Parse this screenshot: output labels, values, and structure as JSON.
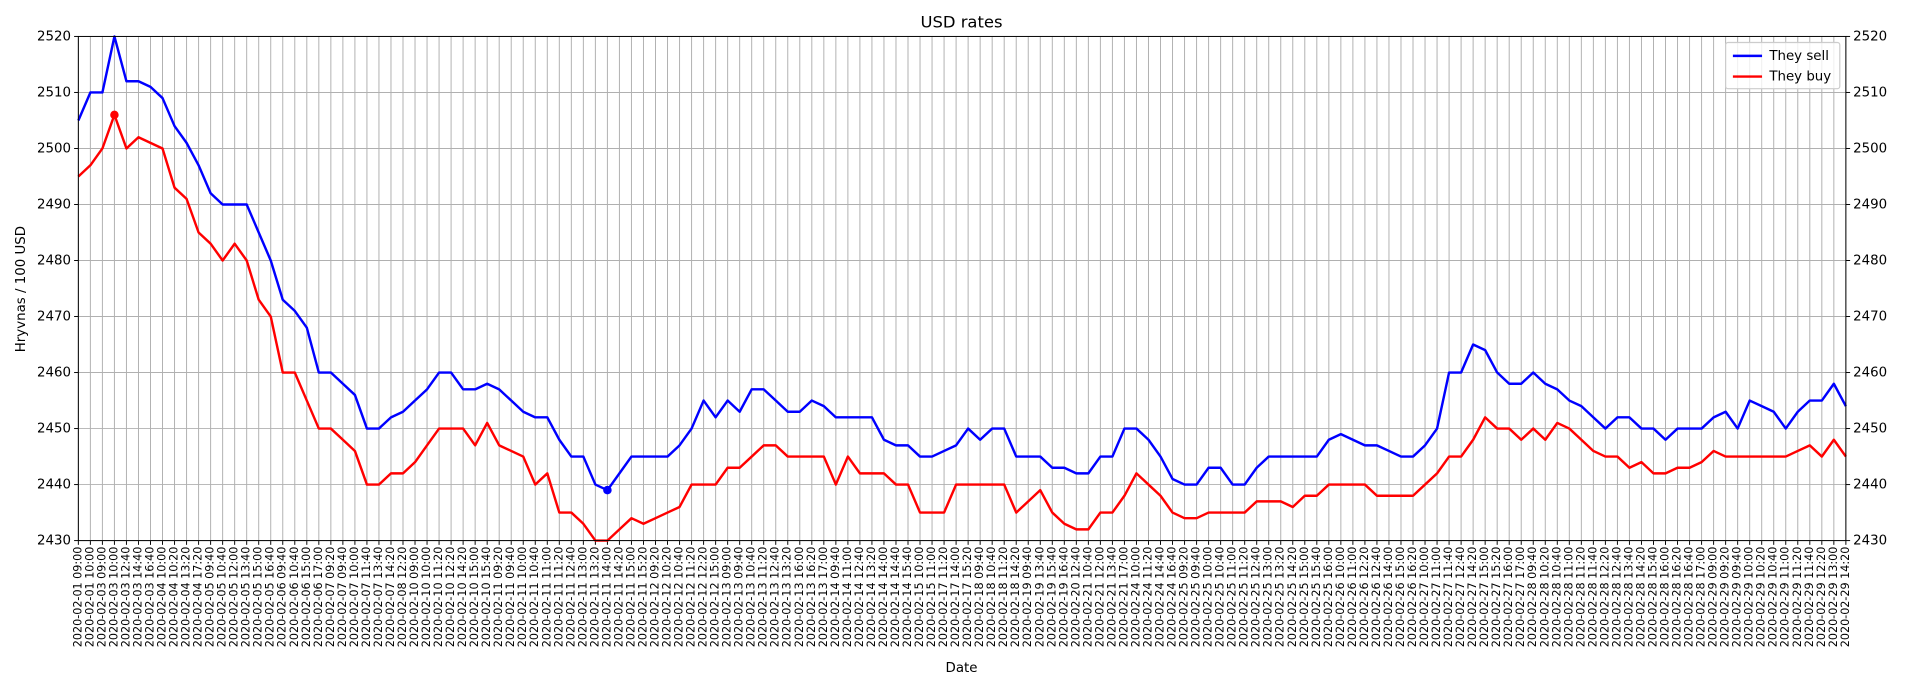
{
  "chart_data": {
    "type": "line",
    "title": "USD rates",
    "x_label": "Date",
    "y_label": "Hryvnas / 100 USD",
    "categories": [
      "2020-02-01 09:00",
      "2020-02-01 10:00",
      "2020-02-03 09:00",
      "2020-02-03 10:00",
      "2020-02-03 12:40",
      "2020-02-03 14:40",
      "2020-02-03 16:40",
      "2020-02-04 10:00",
      "2020-02-04 10:20",
      "2020-02-04 13:20",
      "2020-02-04 17:20",
      "2020-02-05 09:40",
      "2020-02-05 10:40",
      "2020-02-05 12:00",
      "2020-02-05 13:40",
      "2020-02-05 15:00",
      "2020-02-05 16:40",
      "2020-02-06 09:40",
      "2020-02-06 10:40",
      "2020-02-06 15:00",
      "2020-02-06 17:00",
      "2020-02-07 09:20",
      "2020-02-07 09:40",
      "2020-02-07 10:00",
      "2020-02-07 11:40",
      "2020-02-07 13:40",
      "2020-02-07 14:20",
      "2020-02-08 12:20",
      "2020-02-10 09:00",
      "2020-02-10 10:00",
      "2020-02-10 11:20",
      "2020-02-10 12:20",
      "2020-02-10 14:20",
      "2020-02-10 15:00",
      "2020-02-10 15:40",
      "2020-02-11 09:20",
      "2020-02-11 09:40",
      "2020-02-11 10:00",
      "2020-02-11 10:40",
      "2020-02-11 11:00",
      "2020-02-11 11:20",
      "2020-02-11 12:40",
      "2020-02-11 13:00",
      "2020-02-11 13:20",
      "2020-02-11 14:00",
      "2020-02-11 14:20",
      "2020-02-11 15:00",
      "2020-02-11 15:20",
      "2020-02-12 09:20",
      "2020-02-12 10:20",
      "2020-02-12 10:40",
      "2020-02-12 11:20",
      "2020-02-12 12:20",
      "2020-02-12 15:00",
      "2020-02-13 09:00",
      "2020-02-13 09:40",
      "2020-02-13 10:40",
      "2020-02-13 11:20",
      "2020-02-13 12:40",
      "2020-02-13 13:20",
      "2020-02-13 16:00",
      "2020-02-13 16:20",
      "2020-02-13 17:00",
      "2020-02-14 09:40",
      "2020-02-14 11:00",
      "2020-02-14 12:40",
      "2020-02-14 13:20",
      "2020-02-14 14:00",
      "2020-02-14 14:40",
      "2020-02-14 15:40",
      "2020-02-15 10:00",
      "2020-02-15 11:00",
      "2020-02-17 11:20",
      "2020-02-17 14:00",
      "2020-02-17 15:20",
      "2020-02-18 09:40",
      "2020-02-18 10:40",
      "2020-02-18 11:20",
      "2020-02-18 14:20",
      "2020-02-19 09:40",
      "2020-02-19 13:40",
      "2020-02-19 15:40",
      "2020-02-19 16:40",
      "2020-02-20 12:40",
      "2020-02-21 10:40",
      "2020-02-21 12:00",
      "2020-02-21 13:40",
      "2020-02-21 17:00",
      "2020-02-24 10:00",
      "2020-02-24 11:20",
      "2020-02-24 14:40",
      "2020-02-24 16:40",
      "2020-02-25 09:20",
      "2020-02-25 09:40",
      "2020-02-25 10:00",
      "2020-02-25 10:40",
      "2020-02-25 11:00",
      "2020-02-25 11:20",
      "2020-02-25 12:40",
      "2020-02-25 13:00",
      "2020-02-25 13:20",
      "2020-02-25 14:20",
      "2020-02-25 15:00",
      "2020-02-25 15:40",
      "2020-02-25 16:00",
      "2020-02-26 10:00",
      "2020-02-26 11:00",
      "2020-02-26 12:20",
      "2020-02-26 12:40",
      "2020-02-26 14:00",
      "2020-02-26 15:00",
      "2020-02-26 16:20",
      "2020-02-27 10:00",
      "2020-02-27 11:00",
      "2020-02-27 11:40",
      "2020-02-27 12:40",
      "2020-02-27 14:20",
      "2020-02-27 15:00",
      "2020-02-27 15:20",
      "2020-02-27 16:00",
      "2020-02-27 17:00",
      "2020-02-28 09:40",
      "2020-02-28 10:20",
      "2020-02-28 10:40",
      "2020-02-28 11:00",
      "2020-02-28 11:20",
      "2020-02-28 11:40",
      "2020-02-28 12:20",
      "2020-02-28 12:40",
      "2020-02-28 13:40",
      "2020-02-28 14:20",
      "2020-02-28 15:40",
      "2020-02-28 16:00",
      "2020-02-28 16:20",
      "2020-02-28 16:40",
      "2020-02-28 17:00",
      "2020-02-29 09:00",
      "2020-02-29 09:20",
      "2020-02-29 09:40",
      "2020-02-29 10:00",
      "2020-02-29 10:20",
      "2020-02-29 10:40",
      "2020-02-29 11:00",
      "2020-02-29 11:20",
      "2020-02-29 11:40",
      "2020-02-29 12:20",
      "2020-02-29 13:00",
      "2020-02-29 14:20"
    ],
    "series": [
      {
        "name": "They sell",
        "color": "#0000ff",
        "values": [
          2505,
          2510,
          2510,
          2520,
          2512,
          2512,
          2511,
          2509,
          2504,
          2501,
          2497,
          2492,
          2490,
          2490,
          2490,
          2485,
          2480,
          2473,
          2471,
          2468,
          2460,
          2460,
          2458,
          2456,
          2450,
          2450,
          2452,
          2453,
          2455,
          2457,
          2460,
          2460,
          2457,
          2457,
          2458,
          2457,
          2455,
          2453,
          2452,
          2452,
          2448,
          2445,
          2445,
          2440,
          2439,
          2442,
          2445,
          2445,
          2445,
          2445,
          2447,
          2450,
          2455,
          2452,
          2455,
          2453,
          2457,
          2457,
          2455,
          2453,
          2453,
          2455,
          2454,
          2452,
          2452,
          2452,
          2452,
          2448,
          2447,
          2447,
          2445,
          2445,
          2446,
          2447,
          2450,
          2448,
          2450,
          2450,
          2445,
          2445,
          2445,
          2443,
          2443,
          2442,
          2442,
          2445,
          2445,
          2450,
          2450,
          2448,
          2445,
          2441,
          2440,
          2440,
          2443,
          2443,
          2440,
          2440,
          2443,
          2445,
          2445,
          2445,
          2445,
          2445,
          2448,
          2449,
          2448,
          2447,
          2447,
          2446,
          2445,
          2445,
          2447,
          2450,
          2460,
          2460,
          2465,
          2464,
          2460,
          2458,
          2458,
          2460,
          2458,
          2457,
          2455,
          2454,
          2452,
          2450,
          2452,
          2452,
          2450,
          2450,
          2448,
          2450,
          2450,
          2450,
          2452,
          2453,
          2450,
          2455,
          2454,
          2453,
          2450,
          2453,
          2455,
          2455,
          2458,
          2454
        ]
      },
      {
        "name": "They buy",
        "color": "#ff0000",
        "values": [
          2495,
          2497,
          2500,
          2506,
          2500,
          2502,
          2501,
          2500,
          2493,
          2491,
          2485,
          2483,
          2480,
          2483,
          2480,
          2473,
          2470,
          2460,
          2460,
          2455,
          2450,
          2450,
          2448,
          2446,
          2440,
          2440,
          2442,
          2442,
          2444,
          2447,
          2450,
          2450,
          2450,
          2447,
          2451,
          2447,
          2446,
          2445,
          2440,
          2442,
          2435,
          2435,
          2433,
          2430,
          2430,
          2432,
          2434,
          2433,
          2434,
          2435,
          2436,
          2440,
          2440,
          2440,
          2443,
          2443,
          2445,
          2447,
          2447,
          2445,
          2445,
          2445,
          2445,
          2440,
          2445,
          2442,
          2442,
          2442,
          2440,
          2440,
          2435,
          2435,
          2435,
          2440,
          2440,
          2440,
          2440,
          2440,
          2435,
          2437,
          2439,
          2435,
          2433,
          2432,
          2432,
          2435,
          2435,
          2438,
          2442,
          2440,
          2438,
          2435,
          2434,
          2434,
          2435,
          2435,
          2435,
          2435,
          2437,
          2437,
          2437,
          2436,
          2438,
          2438,
          2440,
          2440,
          2440,
          2440,
          2438,
          2438,
          2438,
          2438,
          2440,
          2442,
          2445,
          2445,
          2448,
          2452,
          2450,
          2450,
          2448,
          2450,
          2448,
          2451,
          2450,
          2448,
          2446,
          2445,
          2445,
          2443,
          2444,
          2442,
          2442,
          2443,
          2443,
          2444,
          2446,
          2445,
          2445,
          2445,
          2445,
          2445,
          2445,
          2446,
          2447,
          2445,
          2448,
          2445
        ]
      }
    ],
    "ylim": [
      2430,
      2520
    ],
    "yticks": [
      2430,
      2440,
      2450,
      2460,
      2470,
      2480,
      2490,
      2500,
      2510,
      2520
    ],
    "y2lim": [
      2430,
      2520
    ],
    "y2ticks": [
      2430,
      2440,
      2450,
      2460,
      2470,
      2480,
      2490,
      2500,
      2510,
      2520
    ],
    "grid": true,
    "legend": "upper right"
  }
}
